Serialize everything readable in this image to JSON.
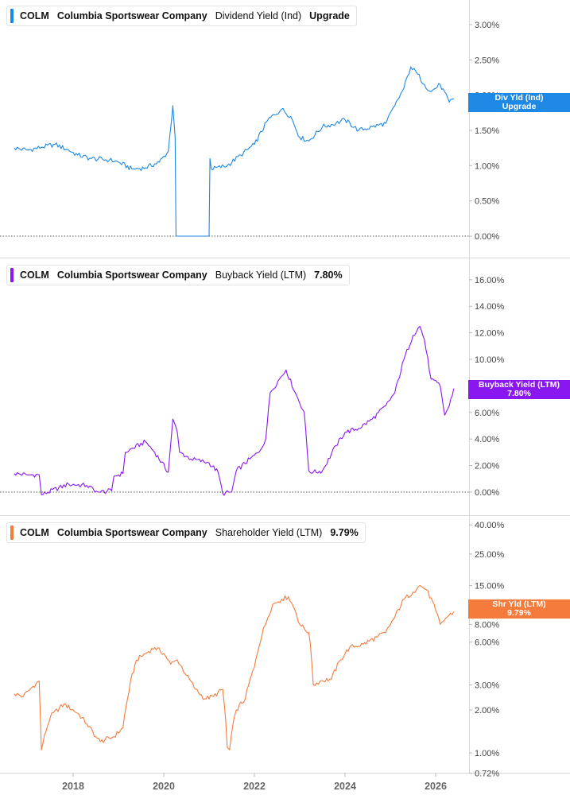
{
  "ticker": "COLM",
  "company": "Columbia Sportswear Company",
  "x_axis": {
    "ticks": [
      "2018",
      "2020",
      "2022",
      "2024",
      "2026"
    ]
  },
  "panels": [
    {
      "metric": "Dividend Yield (Ind)",
      "value_label": "Upgrade",
      "badge_line1": "Div Yld (Ind)",
      "badge_line2": "Upgrade",
      "color": "#1e88e5",
      "y_ticks": [
        "3.00%",
        "2.50%",
        "2.00%",
        "1.50%",
        "1.00%",
        "0.50%",
        "0.00%"
      ]
    },
    {
      "metric": "Buyback Yield (LTM)",
      "value_label": "7.80%",
      "badge_line1": "Buyback Yield (LTM)",
      "badge_line2": "7.80%",
      "color": "#8a17f0",
      "y_ticks": [
        "16.00%",
        "14.00%",
        "12.00%",
        "10.00%",
        "8.00%",
        "6.00%",
        "4.00%",
        "2.00%",
        "0.00%"
      ]
    },
    {
      "metric": "Shareholder Yield (LTM)",
      "value_label": "9.79%",
      "badge_line1": "Shr Yld (LTM)",
      "badge_line2": "9.79%",
      "color": "#f47b3b",
      "y_ticks": [
        "40.00%",
        "25.00%",
        "15.00%",
        "8.00%",
        "6.00%",
        "3.00%",
        "2.00%",
        "1.00%",
        "0.72%"
      ]
    }
  ],
  "chart_data": [
    {
      "type": "line",
      "title": "COLM Columbia Sportswear Company Dividend Yield (Ind)",
      "ylim": [
        0,
        3.0
      ],
      "series": [
        {
          "name": "Dividend Yield (Ind)",
          "unit": "%",
          "x": [
            2016.7,
            2017.0,
            2017.3,
            2017.6,
            2017.9,
            2018.1,
            2018.4,
            2018.8,
            2019.0,
            2019.3,
            2019.6,
            2019.9,
            2020.1,
            2020.2,
            2020.25,
            2020.27,
            2021.0,
            2021.02,
            2021.05,
            2021.4,
            2021.7,
            2022.0,
            2022.3,
            2022.6,
            2022.8,
            2023.0,
            2023.2,
            2023.5,
            2023.8,
            2024.0,
            2024.3,
            2024.6,
            2024.9,
            2025.1,
            2025.3,
            2025.45,
            2025.6,
            2025.75,
            2025.9,
            2026.1,
            2026.3,
            2026.4
          ],
          "y": [
            1.25,
            1.22,
            1.26,
            1.3,
            1.22,
            1.15,
            1.1,
            1.08,
            1.05,
            0.95,
            0.97,
            1.05,
            1.2,
            1.85,
            1.4,
            0.0,
            0.0,
            1.1,
            0.95,
            1.0,
            1.15,
            1.3,
            1.65,
            1.8,
            1.7,
            1.4,
            1.35,
            1.55,
            1.6,
            1.65,
            1.5,
            1.55,
            1.6,
            1.85,
            2.1,
            2.4,
            2.3,
            2.15,
            2.05,
            2.15,
            1.9,
            1.95
          ]
        }
      ]
    },
    {
      "type": "line",
      "title": "COLM Columbia Sportswear Company Buyback Yield (LTM)",
      "ylim": [
        -0.5,
        16.0
      ],
      "series": [
        {
          "name": "Buyback Yield (LTM)",
          "unit": "%",
          "x": [
            2016.7,
            2017.0,
            2017.05,
            2017.25,
            2017.3,
            2017.9,
            2018.3,
            2018.55,
            2018.6,
            2018.85,
            2018.9,
            2019.1,
            2019.15,
            2019.6,
            2019.8,
            2020.1,
            2020.2,
            2020.3,
            2020.35,
            2020.6,
            2021.0,
            2021.2,
            2021.3,
            2021.5,
            2021.6,
            2021.9,
            2022.1,
            2022.25,
            2022.35,
            2022.55,
            2022.7,
            2022.9,
            2023.1,
            2023.2,
            2023.3,
            2023.5,
            2023.8,
            2024.0,
            2024.3,
            2024.6,
            2024.9,
            2025.1,
            2025.3,
            2025.5,
            2025.65,
            2025.75,
            2025.9,
            2026.1,
            2026.2,
            2026.3,
            2026.4
          ],
          "y": [
            1.4,
            1.3,
            1.3,
            1.3,
            -0.2,
            0.6,
            0.5,
            0.0,
            0.0,
            0.1,
            1.2,
            1.4,
            3.0,
            3.8,
            3.0,
            1.5,
            5.5,
            4.5,
            3.0,
            2.5,
            2.2,
            1.5,
            -0.1,
            0.0,
            1.6,
            2.5,
            3.0,
            4.0,
            7.5,
            8.5,
            9.2,
            7.5,
            6.0,
            1.6,
            1.5,
            1.6,
            3.5,
            4.5,
            4.8,
            5.5,
            6.5,
            7.5,
            10.0,
            11.8,
            12.5,
            11.5,
            8.5,
            8.0,
            5.8,
            6.5,
            7.8
          ]
        }
      ]
    },
    {
      "type": "line",
      "title": "COLM Columbia Sportswear Company Shareholder Yield (LTM)",
      "ylim": [
        0.72,
        40.0
      ],
      "yscale": "log",
      "series": [
        {
          "name": "Shareholder Yield (LTM)",
          "unit": "%",
          "x": [
            2016.7,
            2016.9,
            2017.05,
            2017.25,
            2017.3,
            2017.5,
            2017.8,
            2018.1,
            2018.3,
            2018.5,
            2018.6,
            2018.9,
            2019.1,
            2019.2,
            2019.4,
            2019.6,
            2019.8,
            2020.0,
            2020.15,
            2020.3,
            2020.5,
            2020.7,
            2020.9,
            2021.1,
            2021.3,
            2021.4,
            2021.45,
            2021.6,
            2021.8,
            2022.0,
            2022.3,
            2022.4,
            2022.6,
            2022.75,
            2022.9,
            2023.0,
            2023.2,
            2023.3,
            2023.45,
            2023.7,
            2023.9,
            2024.1,
            2024.4,
            2024.7,
            2024.9,
            2025.1,
            2025.3,
            2025.5,
            2025.65,
            2025.8,
            2026.0,
            2026.1,
            2026.25,
            2026.4
          ],
          "y": [
            2.6,
            2.5,
            2.8,
            3.2,
            1.05,
            1.8,
            2.2,
            1.9,
            1.6,
            1.3,
            1.2,
            1.3,
            1.5,
            2.4,
            4.5,
            5.0,
            5.5,
            5.0,
            4.2,
            4.5,
            3.5,
            2.8,
            2.4,
            2.5,
            2.8,
            1.1,
            1.05,
            2.0,
            2.4,
            4.0,
            9.0,
            11.0,
            12.0,
            12.5,
            10.0,
            8.0,
            7.0,
            3.0,
            3.2,
            3.3,
            4.5,
            5.5,
            5.8,
            6.5,
            7.0,
            9.0,
            12.0,
            13.5,
            15.0,
            14.0,
            10.0,
            8.0,
            9.0,
            9.79
          ]
        }
      ]
    }
  ]
}
